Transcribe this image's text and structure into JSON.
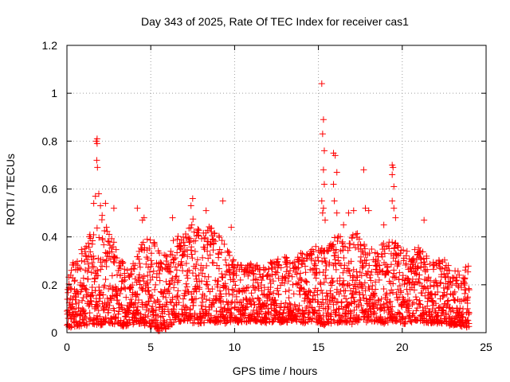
{
  "chart_data": {
    "type": "scatter",
    "title": "Day 343 of 2025, Rate Of TEC Index for receiver cas1",
    "xlabel": "GPS time / hours",
    "ylabel": "ROTI / TECUs",
    "xlim": [
      0,
      25
    ],
    "ylim": [
      0,
      1.2
    ],
    "x_ticks": [
      0,
      5,
      10,
      15,
      20,
      25
    ],
    "x_tick_labels": [
      "0",
      "5",
      "10",
      "15",
      "20",
      "25"
    ],
    "y_ticks": [
      0,
      0.2,
      0.4,
      0.6,
      0.8,
      1.0,
      1.2
    ],
    "y_tick_labels": [
      "0",
      "0.2",
      "0.4",
      "0.6",
      "0.8",
      "1",
      "1.2"
    ],
    "grid": true,
    "marker": "+",
    "color": "#ff0000",
    "series": [
      {
        "name": "ROTI",
        "data_range_x": [
          0,
          24
        ],
        "envelope": {
          "x": [
            0,
            0.5,
            1,
            1.5,
            2,
            2.5,
            3,
            3.5,
            4,
            4.5,
            5,
            5.5,
            6,
            6.5,
            7,
            7.5,
            8,
            8.5,
            9,
            9.5,
            10,
            10.5,
            11,
            11.5,
            12,
            12.5,
            13,
            13.5,
            14,
            14.5,
            15,
            15.5,
            16,
            16.5,
            17,
            17.5,
            18,
            18.5,
            19,
            19.5,
            20,
            20.5,
            21,
            21.5,
            22,
            22.5,
            23,
            23.5,
            24
          ],
          "upper": [
            0.26,
            0.3,
            0.36,
            0.44,
            0.5,
            0.42,
            0.36,
            0.26,
            0.3,
            0.38,
            0.42,
            0.34,
            0.36,
            0.4,
            0.42,
            0.48,
            0.42,
            0.44,
            0.42,
            0.36,
            0.3,
            0.28,
            0.3,
            0.28,
            0.3,
            0.3,
            0.32,
            0.3,
            0.34,
            0.34,
            0.38,
            0.36,
            0.4,
            0.44,
            0.44,
            0.4,
            0.36,
            0.34,
            0.38,
            0.38,
            0.36,
            0.34,
            0.36,
            0.32,
            0.3,
            0.3,
            0.28,
            0.26,
            0.3
          ],
          "lower": [
            0.02,
            0.03,
            0.03,
            0.04,
            0.03,
            0.04,
            0.03,
            0.03,
            0.04,
            0.04,
            0.02,
            0.01,
            0.02,
            0.04,
            0.05,
            0.04,
            0.04,
            0.05,
            0.04,
            0.04,
            0.05,
            0.04,
            0.05,
            0.05,
            0.04,
            0.05,
            0.04,
            0.05,
            0.04,
            0.05,
            0.04,
            0.03,
            0.04,
            0.05,
            0.04,
            0.05,
            0.04,
            0.05,
            0.04,
            0.05,
            0.04,
            0.04,
            0.05,
            0.04,
            0.04,
            0.04,
            0.03,
            0.03,
            0.02
          ]
        },
        "outliers": [
          {
            "x": 1.6,
            "y": 0.54
          },
          {
            "x": 1.7,
            "y": 0.57
          },
          {
            "x": 1.75,
            "y": 0.8
          },
          {
            "x": 1.8,
            "y": 0.81
          },
          {
            "x": 1.8,
            "y": 0.79
          },
          {
            "x": 1.78,
            "y": 0.72
          },
          {
            "x": 1.82,
            "y": 0.69
          },
          {
            "x": 1.9,
            "y": 0.58
          },
          {
            "x": 2.0,
            "y": 0.53
          },
          {
            "x": 2.1,
            "y": 0.49
          },
          {
            "x": 2.3,
            "y": 0.54
          },
          {
            "x": 2.8,
            "y": 0.52
          },
          {
            "x": 4.2,
            "y": 0.52
          },
          {
            "x": 4.5,
            "y": 0.47
          },
          {
            "x": 4.6,
            "y": 0.48
          },
          {
            "x": 6.3,
            "y": 0.48
          },
          {
            "x": 7.5,
            "y": 0.56
          },
          {
            "x": 7.4,
            "y": 0.53
          },
          {
            "x": 8.3,
            "y": 0.51
          },
          {
            "x": 9.3,
            "y": 0.55
          },
          {
            "x": 9.8,
            "y": 0.44
          },
          {
            "x": 15.2,
            "y": 1.04
          },
          {
            "x": 15.3,
            "y": 0.89
          },
          {
            "x": 15.25,
            "y": 0.83
          },
          {
            "x": 15.35,
            "y": 0.76
          },
          {
            "x": 15.3,
            "y": 0.68
          },
          {
            "x": 15.35,
            "y": 0.62
          },
          {
            "x": 15.2,
            "y": 0.55
          },
          {
            "x": 15.3,
            "y": 0.52
          },
          {
            "x": 15.25,
            "y": 0.5
          },
          {
            "x": 15.4,
            "y": 0.47
          },
          {
            "x": 15.9,
            "y": 0.75
          },
          {
            "x": 16.0,
            "y": 0.74
          },
          {
            "x": 16.1,
            "y": 0.67
          },
          {
            "x": 15.9,
            "y": 0.62
          },
          {
            "x": 15.95,
            "y": 0.55
          },
          {
            "x": 16.1,
            "y": 0.5
          },
          {
            "x": 16.8,
            "y": 0.5
          },
          {
            "x": 17.1,
            "y": 0.51
          },
          {
            "x": 17.7,
            "y": 0.68
          },
          {
            "x": 17.8,
            "y": 0.52
          },
          {
            "x": 18.0,
            "y": 0.51
          },
          {
            "x": 19.4,
            "y": 0.7
          },
          {
            "x": 19.45,
            "y": 0.69
          },
          {
            "x": 19.4,
            "y": 0.66
          },
          {
            "x": 19.5,
            "y": 0.61
          },
          {
            "x": 19.4,
            "y": 0.55
          },
          {
            "x": 19.5,
            "y": 0.52
          },
          {
            "x": 19.6,
            "y": 0.48
          },
          {
            "x": 21.3,
            "y": 0.47
          },
          {
            "x": 18.9,
            "y": 0.45
          },
          {
            "x": 16.5,
            "y": 0.45
          }
        ]
      }
    ]
  }
}
